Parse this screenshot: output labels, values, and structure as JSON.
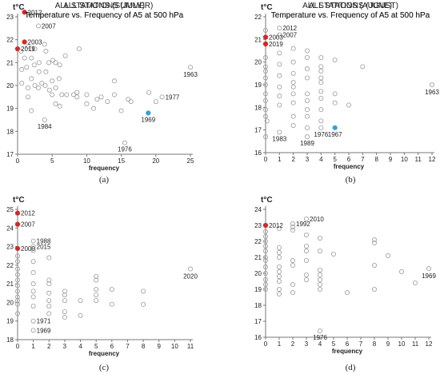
{
  "chart_data": [
    {
      "type": "scatter",
      "title": "ALL STATIONS (SUMMER)",
      "subtitle": "Temperature vs. Frequency of A5 at 500 hPa",
      "ylabel": "t°C",
      "xlabel": "frequency",
      "xlim": [
        0,
        25
      ],
      "ylim": [
        17,
        23
      ],
      "xticks": [
        0,
        5,
        10,
        15,
        20,
        25
      ],
      "yticks": [
        17,
        18,
        19,
        20,
        21,
        22,
        23
      ],
      "caption": "(a)",
      "points": [
        [
          1,
          23.2,
          "red"
        ],
        [
          1,
          21.9,
          "red"
        ],
        [
          0,
          21.6,
          "red"
        ],
        [
          18.9,
          18.8,
          "blue"
        ],
        [
          3,
          22.6,
          ""
        ],
        [
          0.5,
          21.5,
          ""
        ],
        [
          1,
          21.2,
          ""
        ],
        [
          1.3,
          20.8,
          ""
        ],
        [
          0.6,
          20.7,
          ""
        ],
        [
          1.5,
          21.7,
          ""
        ],
        [
          2,
          21.6,
          ""
        ],
        [
          2.5,
          21.6,
          ""
        ],
        [
          2,
          21.2,
          ""
        ],
        [
          2.4,
          20.9,
          ""
        ],
        [
          3.1,
          21.0,
          ""
        ],
        [
          3.1,
          20.6,
          ""
        ],
        [
          3.9,
          21.8,
          ""
        ],
        [
          4.1,
          21.5,
          ""
        ],
        [
          4.5,
          21.0,
          ""
        ],
        [
          4.1,
          20.6,
          ""
        ],
        [
          5.1,
          21.1,
          ""
        ],
        [
          5.5,
          21.0,
          ""
        ],
        [
          6.1,
          20.9,
          ""
        ],
        [
          6.9,
          21.3,
          ""
        ],
        [
          8.9,
          21.6,
          ""
        ],
        [
          0.6,
          20.1,
          ""
        ],
        [
          1.5,
          19.9,
          ""
        ],
        [
          1.5,
          19.5,
          ""
        ],
        [
          2,
          20.3,
          ""
        ],
        [
          2.5,
          20.0,
          ""
        ],
        [
          3,
          19.9,
          ""
        ],
        [
          3.5,
          20.1,
          ""
        ],
        [
          4,
          20.0,
          ""
        ],
        [
          4.6,
          19.8,
          ""
        ],
        [
          5,
          20.2,
          ""
        ],
        [
          5,
          19.6,
          ""
        ],
        [
          5.5,
          19.9,
          ""
        ],
        [
          6,
          20.3,
          ""
        ],
        [
          6.4,
          19.6,
          ""
        ],
        [
          7.1,
          19.6,
          ""
        ],
        [
          8.1,
          19.6,
          ""
        ],
        [
          8.6,
          19.5,
          ""
        ],
        [
          8.6,
          19.7,
          ""
        ],
        [
          10,
          19.6,
          ""
        ],
        [
          11.5,
          19.4,
          ""
        ],
        [
          12.1,
          19.5,
          ""
        ],
        [
          13,
          19.3,
          ""
        ],
        [
          14,
          20.2,
          ""
        ],
        [
          14,
          19.6,
          ""
        ],
        [
          16,
          19.4,
          ""
        ],
        [
          16.4,
          19.3,
          ""
        ],
        [
          19,
          19.7,
          ""
        ],
        [
          10,
          19.2,
          ""
        ],
        [
          6.1,
          19.1,
          ""
        ],
        [
          5.5,
          19.2,
          ""
        ],
        [
          2,
          18.9,
          ""
        ],
        [
          3.9,
          18.5,
          ""
        ],
        [
          11,
          19.0,
          ""
        ],
        [
          15,
          18.9,
          ""
        ],
        [
          20,
          19.3,
          ""
        ],
        [
          20.9,
          19.5,
          ""
        ],
        [
          25,
          20.8,
          ""
        ],
        [
          15.5,
          17.5,
          ""
        ]
      ],
      "labels": [
        {
          "text": "2012",
          "x": 1,
          "y": 23.2
        },
        {
          "text": "2007",
          "x": 3,
          "y": 22.6
        },
        {
          "text": "2003",
          "x": 1,
          "y": 21.9
        },
        {
          "text": "2019",
          "x": 0,
          "y": 21.6
        },
        {
          "text": "1963",
          "x": 25,
          "y": 20.8
        },
        {
          "text": "1969",
          "x": 18.9,
          "y": 18.8
        },
        {
          "text": "1977",
          "x": 20.9,
          "y": 19.5
        },
        {
          "text": "1984",
          "x": 3.9,
          "y": 18.5
        },
        {
          "text": "1976",
          "x": 15.5,
          "y": 17.5
        }
      ]
    },
    {
      "type": "scatter",
      "title": "ALL STATIONS (JUNE)",
      "subtitle": "Temperature vs. Frequency of A5 at 500 hPa",
      "ylabel": "t°C",
      "xlabel": "frequency",
      "xlim": [
        0,
        12
      ],
      "ylim": [
        16,
        22
      ],
      "xticks": [
        0,
        1,
        2,
        3,
        4,
        5,
        6,
        7,
        8,
        9,
        10,
        11,
        12
      ],
      "yticks": [
        16,
        17,
        18,
        19,
        20,
        21,
        22
      ],
      "caption": "(b)",
      "points": [
        [
          0,
          21.1,
          "red"
        ],
        [
          0,
          20.8,
          "red"
        ],
        [
          5,
          17.1,
          "blue"
        ],
        [
          1,
          21.5,
          ""
        ],
        [
          1,
          21.2,
          ""
        ],
        [
          0,
          21.4,
          ""
        ],
        [
          0,
          20.2,
          ""
        ],
        [
          0,
          19.8,
          ""
        ],
        [
          0,
          19.6,
          ""
        ],
        [
          0,
          19.3,
          ""
        ],
        [
          0,
          19.0,
          ""
        ],
        [
          0,
          18.6,
          ""
        ],
        [
          0,
          18.3,
          ""
        ],
        [
          0,
          17.9,
          ""
        ],
        [
          0,
          17.6,
          ""
        ],
        [
          0.1,
          17.4,
          ""
        ],
        [
          0,
          16.7,
          ""
        ],
        [
          1,
          20.4,
          ""
        ],
        [
          1,
          19.9,
          ""
        ],
        [
          1,
          19.4,
          ""
        ],
        [
          1,
          18.9,
          ""
        ],
        [
          1,
          18.5,
          ""
        ],
        [
          1,
          18.1,
          ""
        ],
        [
          2,
          20.6,
          ""
        ],
        [
          2,
          20.0,
          ""
        ],
        [
          2,
          19.5,
          ""
        ],
        [
          2,
          19.1,
          ""
        ],
        [
          2,
          18.9,
          ""
        ],
        [
          2,
          18.6,
          ""
        ],
        [
          2,
          18.2,
          ""
        ],
        [
          2,
          17.6,
          ""
        ],
        [
          2,
          17.2,
          ""
        ],
        [
          3,
          20.5,
          ""
        ],
        [
          3,
          20.2,
          ""
        ],
        [
          3,
          19.7,
          ""
        ],
        [
          3,
          19.3,
          ""
        ],
        [
          3,
          18.6,
          ""
        ],
        [
          3,
          18.3,
          ""
        ],
        [
          3,
          17.9,
          ""
        ],
        [
          3,
          17.6,
          ""
        ],
        [
          3,
          17.1,
          ""
        ],
        [
          3,
          16.7,
          ""
        ],
        [
          4,
          20.2,
          ""
        ],
        [
          4,
          19.8,
          ""
        ],
        [
          4,
          19.6,
          ""
        ],
        [
          4,
          19.3,
          ""
        ],
        [
          4,
          19.1,
          ""
        ],
        [
          4,
          18.7,
          ""
        ],
        [
          4,
          18.4,
          ""
        ],
        [
          4,
          17.9,
          ""
        ],
        [
          4,
          17.4,
          ""
        ],
        [
          4,
          17.1,
          ""
        ],
        [
          5,
          20.1,
          ""
        ],
        [
          5,
          18.6,
          ""
        ],
        [
          5,
          18.2,
          ""
        ],
        [
          6,
          18.1,
          ""
        ],
        [
          7,
          19.8,
          ""
        ],
        [
          12,
          19.0,
          ""
        ],
        [
          1,
          16.9,
          ""
        ]
      ],
      "labels": [
        {
          "text": "2012",
          "x": 1,
          "y": 21.5
        },
        {
          "text": "2007",
          "x": 1,
          "y": 21.2
        },
        {
          "text": "2003",
          "x": 0,
          "y": 21.1
        },
        {
          "text": "2019",
          "x": 0,
          "y": 20.8
        },
        {
          "text": "1963",
          "x": 12,
          "y": 19.0
        },
        {
          "text": "1983",
          "x": 1,
          "y": 16.9
        },
        {
          "text": "1989",
          "x": 3,
          "y": 16.7
        },
        {
          "text": "1976",
          "x": 4,
          "y": 17.1
        },
        {
          "text": "1967",
          "x": 5,
          "y": 17.1
        }
      ]
    },
    {
      "type": "scatter",
      "title": "ALL STATIONS (JULY)",
      "subtitle": "Temperature vs. Frequency of A5 at 500 hPa",
      "ylabel": "t°C",
      "xlabel": "frequency",
      "xlim": [
        0,
        11
      ],
      "ylim": [
        18,
        25
      ],
      "xticks": [
        0,
        1,
        2,
        3,
        4,
        5,
        6,
        7,
        8,
        9,
        10,
        11
      ],
      "yticks": [
        18,
        19,
        20,
        21,
        22,
        23,
        24,
        25
      ],
      "caption": "(c)",
      "points": [
        [
          0,
          24.8,
          "red"
        ],
        [
          0,
          24.2,
          "red"
        ],
        [
          0,
          22.9,
          "red"
        ],
        [
          1,
          23.3,
          ""
        ],
        [
          1,
          23.0,
          ""
        ],
        [
          1,
          22.8,
          ""
        ],
        [
          1,
          22.2,
          ""
        ],
        [
          0,
          22.5,
          ""
        ],
        [
          0,
          22.2,
          ""
        ],
        [
          0,
          21.8,
          ""
        ],
        [
          0,
          21.5,
          ""
        ],
        [
          0,
          21.2,
          ""
        ],
        [
          0,
          20.9,
          ""
        ],
        [
          0,
          20.6,
          ""
        ],
        [
          0,
          20.3,
          ""
        ],
        [
          0,
          20.1,
          ""
        ],
        [
          0,
          19.9,
          ""
        ],
        [
          0,
          19.4,
          ""
        ],
        [
          1,
          21.6,
          ""
        ],
        [
          1,
          21.0,
          ""
        ],
        [
          1,
          20.6,
          ""
        ],
        [
          1,
          20.3,
          ""
        ],
        [
          1,
          19.8,
          ""
        ],
        [
          2,
          22.4,
          ""
        ],
        [
          2,
          21.2,
          ""
        ],
        [
          2,
          21.0,
          ""
        ],
        [
          2,
          20.5,
          ""
        ],
        [
          2,
          20.1,
          ""
        ],
        [
          2,
          19.8,
          ""
        ],
        [
          2,
          19.4,
          ""
        ],
        [
          3,
          20.6,
          ""
        ],
        [
          3,
          20.4,
          ""
        ],
        [
          3,
          20.1,
          ""
        ],
        [
          3,
          19.5,
          ""
        ],
        [
          3,
          19.2,
          ""
        ],
        [
          4,
          20.1,
          ""
        ],
        [
          4,
          19.3,
          ""
        ],
        [
          5,
          21.4,
          ""
        ],
        [
          5,
          21.2,
          ""
        ],
        [
          5,
          20.7,
          ""
        ],
        [
          5,
          20.4,
          ""
        ],
        [
          5,
          20.1,
          ""
        ],
        [
          6,
          20.7,
          ""
        ],
        [
          6,
          19.9,
          ""
        ],
        [
          8,
          20.6,
          ""
        ],
        [
          8,
          19.9,
          ""
        ],
        [
          11,
          21.8,
          ""
        ],
        [
          1,
          19.0,
          ""
        ],
        [
          1,
          18.5,
          ""
        ]
      ],
      "labels": [
        {
          "text": "2012",
          "x": 0,
          "y": 24.8
        },
        {
          "text": "2007",
          "x": 0,
          "y": 24.2
        },
        {
          "text": "2000",
          "x": 0,
          "y": 22.9
        },
        {
          "text": "1988",
          "x": 1,
          "y": 23.3
        },
        {
          "text": "2015",
          "x": 1,
          "y": 23.0
        },
        {
          "text": "2020",
          "x": 11,
          "y": 21.8
        },
        {
          "text": "1971",
          "x": 1,
          "y": 19.0
        },
        {
          "text": "1969",
          "x": 1,
          "y": 18.5
        }
      ]
    },
    {
      "type": "scatter",
      "title": "ALL STATIONS (AUGUST)",
      "subtitle": "Temperature vs. Frequency of A5 at 500 hPa",
      "ylabel": "t°C",
      "xlabel": "frequency",
      "xlim": [
        0,
        12
      ],
      "ylim": [
        16,
        24
      ],
      "xticks": [
        0,
        1,
        2,
        3,
        4,
        5,
        6,
        7,
        8,
        9,
        10,
        11,
        12
      ],
      "yticks": [
        16,
        17,
        18,
        19,
        20,
        21,
        22,
        23,
        24
      ],
      "caption": "(d)",
      "points": [
        [
          0,
          23.0,
          "red"
        ],
        [
          3,
          23.4,
          ""
        ],
        [
          2,
          23.1,
          ""
        ],
        [
          2,
          22.9,
          ""
        ],
        [
          1,
          22.8,
          ""
        ],
        [
          0,
          22.6,
          ""
        ],
        [
          0,
          22.3,
          ""
        ],
        [
          0,
          22.0,
          ""
        ],
        [
          0,
          21.7,
          ""
        ],
        [
          0,
          21.4,
          ""
        ],
        [
          0,
          21.0,
          ""
        ],
        [
          0,
          20.8,
          ""
        ],
        [
          0,
          20.4,
          ""
        ],
        [
          0,
          20.0,
          ""
        ],
        [
          0,
          19.6,
          ""
        ],
        [
          0,
          19.3,
          ""
        ],
        [
          0,
          19.0,
          ""
        ],
        [
          1,
          21.6,
          ""
        ],
        [
          1,
          21.3,
          ""
        ],
        [
          1,
          21.0,
          ""
        ],
        [
          1,
          20.4,
          ""
        ],
        [
          1,
          20.1,
          ""
        ],
        [
          1,
          19.8,
          ""
        ],
        [
          1,
          19.5,
          ""
        ],
        [
          1,
          19.0,
          ""
        ],
        [
          1,
          18.7,
          ""
        ],
        [
          2,
          22.7,
          ""
        ],
        [
          2,
          20.8,
          ""
        ],
        [
          2,
          20.5,
          ""
        ],
        [
          2,
          19.3,
          ""
        ],
        [
          2,
          18.8,
          ""
        ],
        [
          3,
          22.4,
          ""
        ],
        [
          3,
          21.7,
          ""
        ],
        [
          3,
          21.4,
          ""
        ],
        [
          3,
          20.8,
          ""
        ],
        [
          3,
          19.9,
          ""
        ],
        [
          3,
          19.6,
          ""
        ],
        [
          4,
          22.2,
          ""
        ],
        [
          4,
          21.4,
          ""
        ],
        [
          4,
          20.2,
          ""
        ],
        [
          4,
          19.9,
          ""
        ],
        [
          4,
          19.6,
          ""
        ],
        [
          4,
          19.3,
          ""
        ],
        [
          4,
          19.0,
          ""
        ],
        [
          5,
          21.2,
          ""
        ],
        [
          6,
          18.8,
          ""
        ],
        [
          8,
          22.1,
          ""
        ],
        [
          8,
          21.9,
          ""
        ],
        [
          8,
          20.5,
          ""
        ],
        [
          8,
          19.0,
          ""
        ],
        [
          9,
          21.1,
          ""
        ],
        [
          10,
          20.1,
          ""
        ],
        [
          11,
          19.4,
          ""
        ],
        [
          12,
          20.3,
          ""
        ],
        [
          4,
          16.4,
          ""
        ]
      ],
      "labels": [
        {
          "text": "2012",
          "x": 0,
          "y": 23.0
        },
        {
          "text": "2010",
          "x": 3,
          "y": 23.4
        },
        {
          "text": "1992",
          "x": 2,
          "y": 23.1
        },
        {
          "text": "1969",
          "x": 12,
          "y": 20.3
        },
        {
          "text": "1976",
          "x": 4,
          "y": 16.4
        }
      ]
    }
  ],
  "colors": {
    "red": "#d62728",
    "blue": "#3a9fd8",
    "open": "#9a9a9a",
    "axis": "#777777"
  }
}
